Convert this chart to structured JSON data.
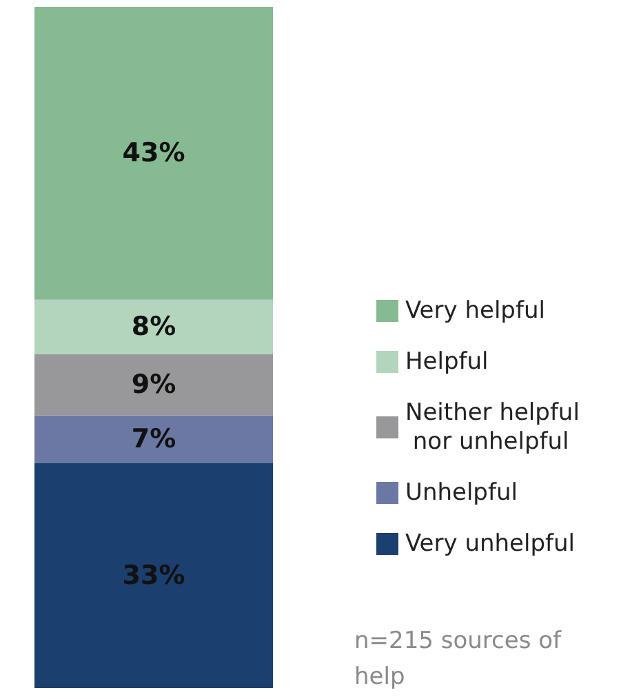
{
  "chart_data": {
    "type": "bar",
    "stacked": true,
    "categories": [
      null
    ],
    "legend": "right",
    "series": [
      {
        "name": "Very unhelpful",
        "color": "#1b3f6e",
        "values": [
          33
        ],
        "value_labels": [
          "33%"
        ]
      },
      {
        "name": "Unhelpful",
        "color": "#6b78a3",
        "values": [
          7
        ],
        "value_labels": [
          "7%"
        ]
      },
      {
        "name": "Neither helpful nor unhelpful",
        "color": "#98989b",
        "values": [
          9
        ],
        "value_labels": [
          "9%"
        ]
      },
      {
        "name": "Helpful",
        "color": "#b3d5bd",
        "values": [
          8
        ],
        "value_labels": [
          "8%"
        ]
      },
      {
        "name": "Very helpful",
        "color": "#86ba92",
        "values": [
          43
        ],
        "value_labels": [
          "43%"
        ]
      }
    ],
    "annotations": [
      "n=215 sources of help"
    ]
  }
}
